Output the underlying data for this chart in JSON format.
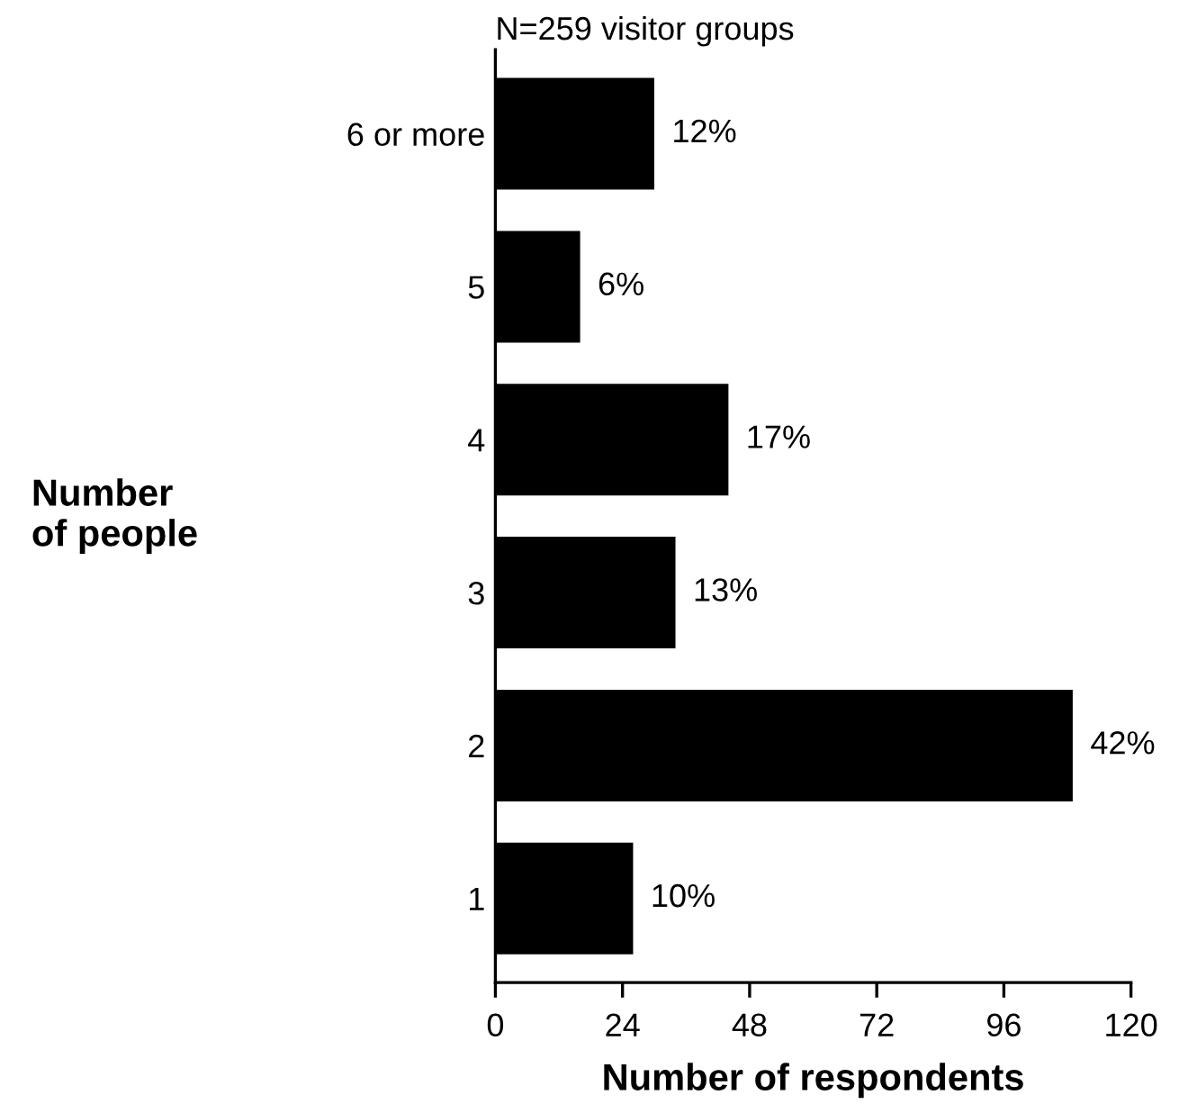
{
  "chart_data": {
    "type": "bar",
    "orientation": "horizontal",
    "title": "N=259 visitor groups",
    "xlabel": "Number of respondents",
    "ylabel": "Number\nof people",
    "categories": [
      "6 or more",
      "5",
      "4",
      "3",
      "2",
      "1"
    ],
    "values": [
      30,
      16,
      44,
      34,
      109,
      26
    ],
    "annotations": [
      {
        "text": "12%",
        "x": 30,
        "y": "6 or more"
      },
      {
        "text": "6%",
        "x": 16,
        "y": "5"
      },
      {
        "text": "17%",
        "x": 44,
        "y": "4"
      },
      {
        "text": "13%",
        "x": 34,
        "y": "3"
      },
      {
        "text": "42%",
        "x": 109,
        "y": "2"
      },
      {
        "text": "10%",
        "x": 26,
        "y": "1"
      }
    ],
    "color": "#000000",
    "xlim": [
      0,
      120
    ],
    "xticks": [
      0,
      24,
      48,
      72,
      96,
      120
    ],
    "grid": false
  }
}
